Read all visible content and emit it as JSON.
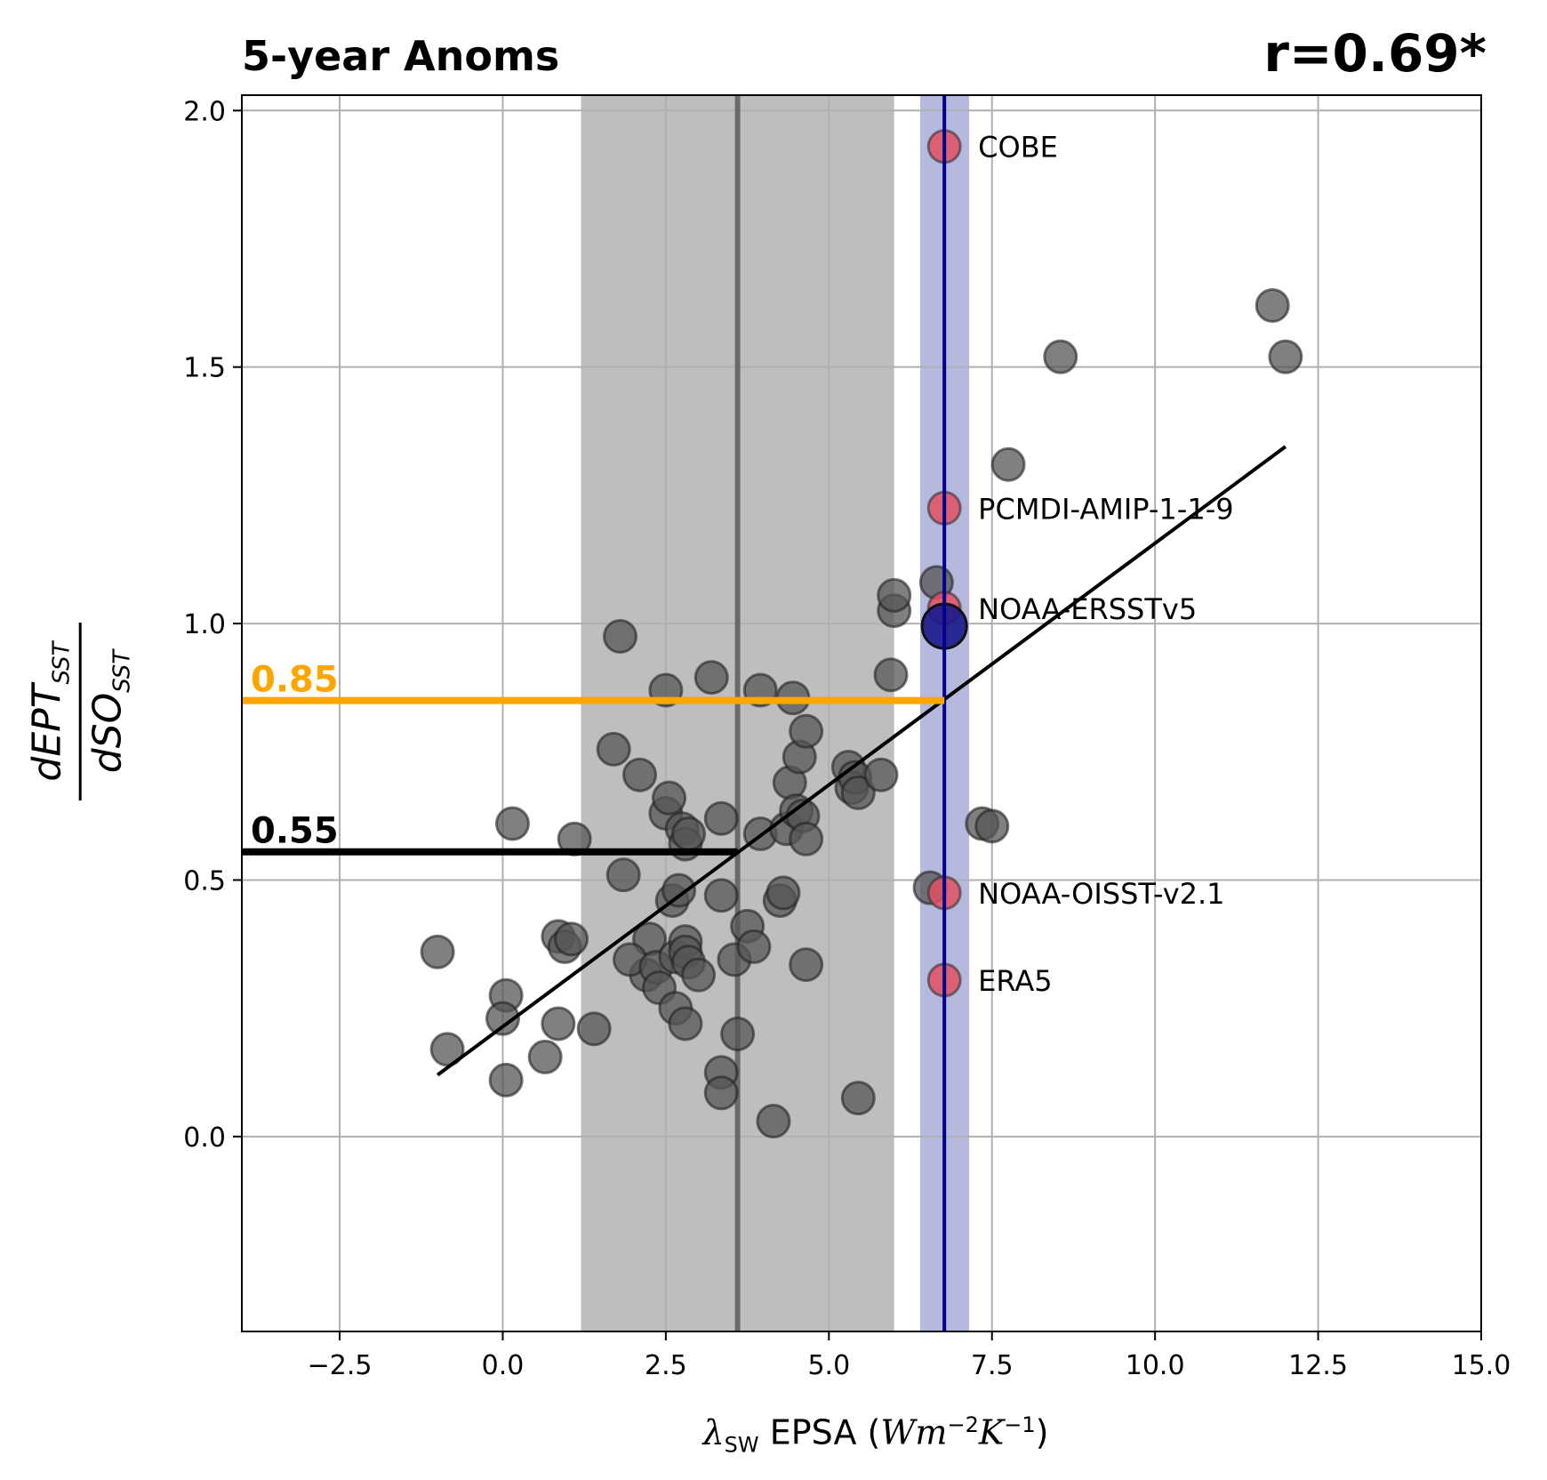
{
  "chart_data": {
    "type": "scatter",
    "title": "5-year Anoms",
    "annotation_right": "r=0.69*",
    "xlabel": {
      "symbol": "λ",
      "symbol_sub": "SW",
      "text": "EPSA",
      "unit_open": "(",
      "unit_w": "Wm",
      "unit_exp1": "−2",
      "unit_k": "K",
      "unit_exp2": "−1",
      "unit_close": ")"
    },
    "ylabel": {
      "numerator": "dEPT",
      "numerator_sub": "SST",
      "denominator": "dSO",
      "denominator_sub": "SST"
    },
    "xlim": [
      -4.0,
      15.0
    ],
    "ylim": [
      -0.38,
      2.03
    ],
    "xticks": [
      -2.5,
      0.0,
      2.5,
      5.0,
      7.5,
      10.0,
      12.5,
      15.0
    ],
    "xtick_labels": [
      "−2.5",
      "0.0",
      "2.5",
      "5.0",
      "7.5",
      "10.0",
      "12.5",
      "15.0"
    ],
    "yticks": [
      0.0,
      0.5,
      1.0,
      1.5,
      2.0
    ],
    "ytick_labels": [
      "0.0",
      "0.5",
      "1.0",
      "1.5",
      "2.0"
    ],
    "grid": true,
    "model_shading": {
      "x_min": 1.2,
      "x_max": 6.0,
      "x_mean": 3.6,
      "color": "#bebebe",
      "mean_color": "#6b6b6b"
    },
    "obs_shading": {
      "x_min": 6.4,
      "x_max": 7.15,
      "x_center": 6.77,
      "color": "#b6b9de",
      "line_color": "#00008b"
    },
    "regression_line": {
      "x": [
        -1.0,
        12.0
      ],
      "y": [
        0.12,
        1.345
      ],
      "color": "#000000"
    },
    "hlines": [
      {
        "y": 0.85,
        "x_end": 6.77,
        "color": "#ffa500",
        "label": "0.85"
      },
      {
        "y": 0.555,
        "x_end": 3.6,
        "color": "#000000",
        "label": "0.55"
      }
    ],
    "models": [
      [
        -1.0,
        0.36
      ],
      [
        -0.85,
        0.17
      ],
      [
        0.05,
        0.275
      ],
      [
        0.0,
        0.23
      ],
      [
        0.05,
        0.11
      ],
      [
        0.15,
        0.61
      ],
      [
        0.65,
        0.155
      ],
      [
        0.85,
        0.22
      ],
      [
        0.85,
        0.39
      ],
      [
        0.95,
        0.37
      ],
      [
        1.05,
        0.385
      ],
      [
        1.1,
        0.58
      ],
      [
        1.4,
        0.21
      ],
      [
        1.7,
        0.755
      ],
      [
        1.8,
        0.975
      ],
      [
        1.85,
        0.51
      ],
      [
        2.1,
        0.705
      ],
      [
        2.25,
        0.385
      ],
      [
        2.2,
        0.315
      ],
      [
        1.95,
        0.345
      ],
      [
        2.35,
        0.33
      ],
      [
        2.4,
        0.29
      ],
      [
        2.5,
        0.87
      ],
      [
        2.5,
        0.63
      ],
      [
        2.55,
        0.66
      ],
      [
        2.6,
        0.46
      ],
      [
        2.65,
        0.35
      ],
      [
        2.65,
        0.25
      ],
      [
        2.7,
        0.48
      ],
      [
        2.75,
        0.6
      ],
      [
        2.8,
        0.57
      ],
      [
        2.8,
        0.38
      ],
      [
        2.8,
        0.36
      ],
      [
        2.85,
        0.34
      ],
      [
        2.8,
        0.22
      ],
      [
        2.85,
        0.59
      ],
      [
        3.0,
        0.315
      ],
      [
        3.2,
        0.895
      ],
      [
        3.35,
        0.62
      ],
      [
        3.35,
        0.47
      ],
      [
        3.35,
        0.125
      ],
      [
        3.35,
        0.085
      ],
      [
        3.55,
        0.345
      ],
      [
        3.6,
        0.2
      ],
      [
        3.75,
        0.41
      ],
      [
        3.85,
        0.37
      ],
      [
        3.95,
        0.59
      ],
      [
        3.95,
        0.87
      ],
      [
        4.15,
        0.03
      ],
      [
        4.25,
        0.46
      ],
      [
        4.3,
        0.475
      ],
      [
        4.35,
        0.6
      ],
      [
        4.4,
        0.69
      ],
      [
        4.45,
        0.855
      ],
      [
        4.5,
        0.635
      ],
      [
        4.55,
        0.74
      ],
      [
        4.6,
        0.625
      ],
      [
        4.65,
        0.79
      ],
      [
        4.65,
        0.58
      ],
      [
        4.65,
        0.335
      ],
      [
        5.3,
        0.72
      ],
      [
        5.35,
        0.68
      ],
      [
        5.4,
        0.7
      ],
      [
        5.45,
        0.67
      ],
      [
        5.45,
        0.075
      ],
      [
        5.8,
        0.705
      ],
      [
        5.95,
        0.9
      ],
      [
        6.0,
        1.025
      ],
      [
        6.0,
        1.055
      ],
      [
        6.65,
        1.08
      ],
      [
        6.55,
        0.485
      ],
      [
        7.35,
        0.61
      ],
      [
        7.5,
        0.605
      ],
      [
        7.75,
        1.31
      ],
      [
        8.55,
        1.52
      ],
      [
        11.8,
        1.62
      ],
      [
        12.0,
        1.52
      ]
    ],
    "observations": [
      {
        "name": "COBE",
        "x": 6.77,
        "y": 1.93
      },
      {
        "name": "PCMDI-AMIP-1-1-9",
        "x": 6.77,
        "y": 1.225
      },
      {
        "name": "NOAA-ERSSTv5",
        "x": 6.77,
        "y": 1.03
      },
      {
        "name": "NOAA-OISST-v2.1",
        "x": 6.77,
        "y": 0.475
      },
      {
        "name": "ERA5",
        "x": 6.77,
        "y": 0.305
      }
    ],
    "obs_mean": {
      "x": 6.77,
      "y": 0.995
    },
    "colors": {
      "model_point": "#555555",
      "obs_point": "#e05060",
      "obs_mean_point": "#1a1a8c",
      "orange": "#ffa500"
    }
  }
}
